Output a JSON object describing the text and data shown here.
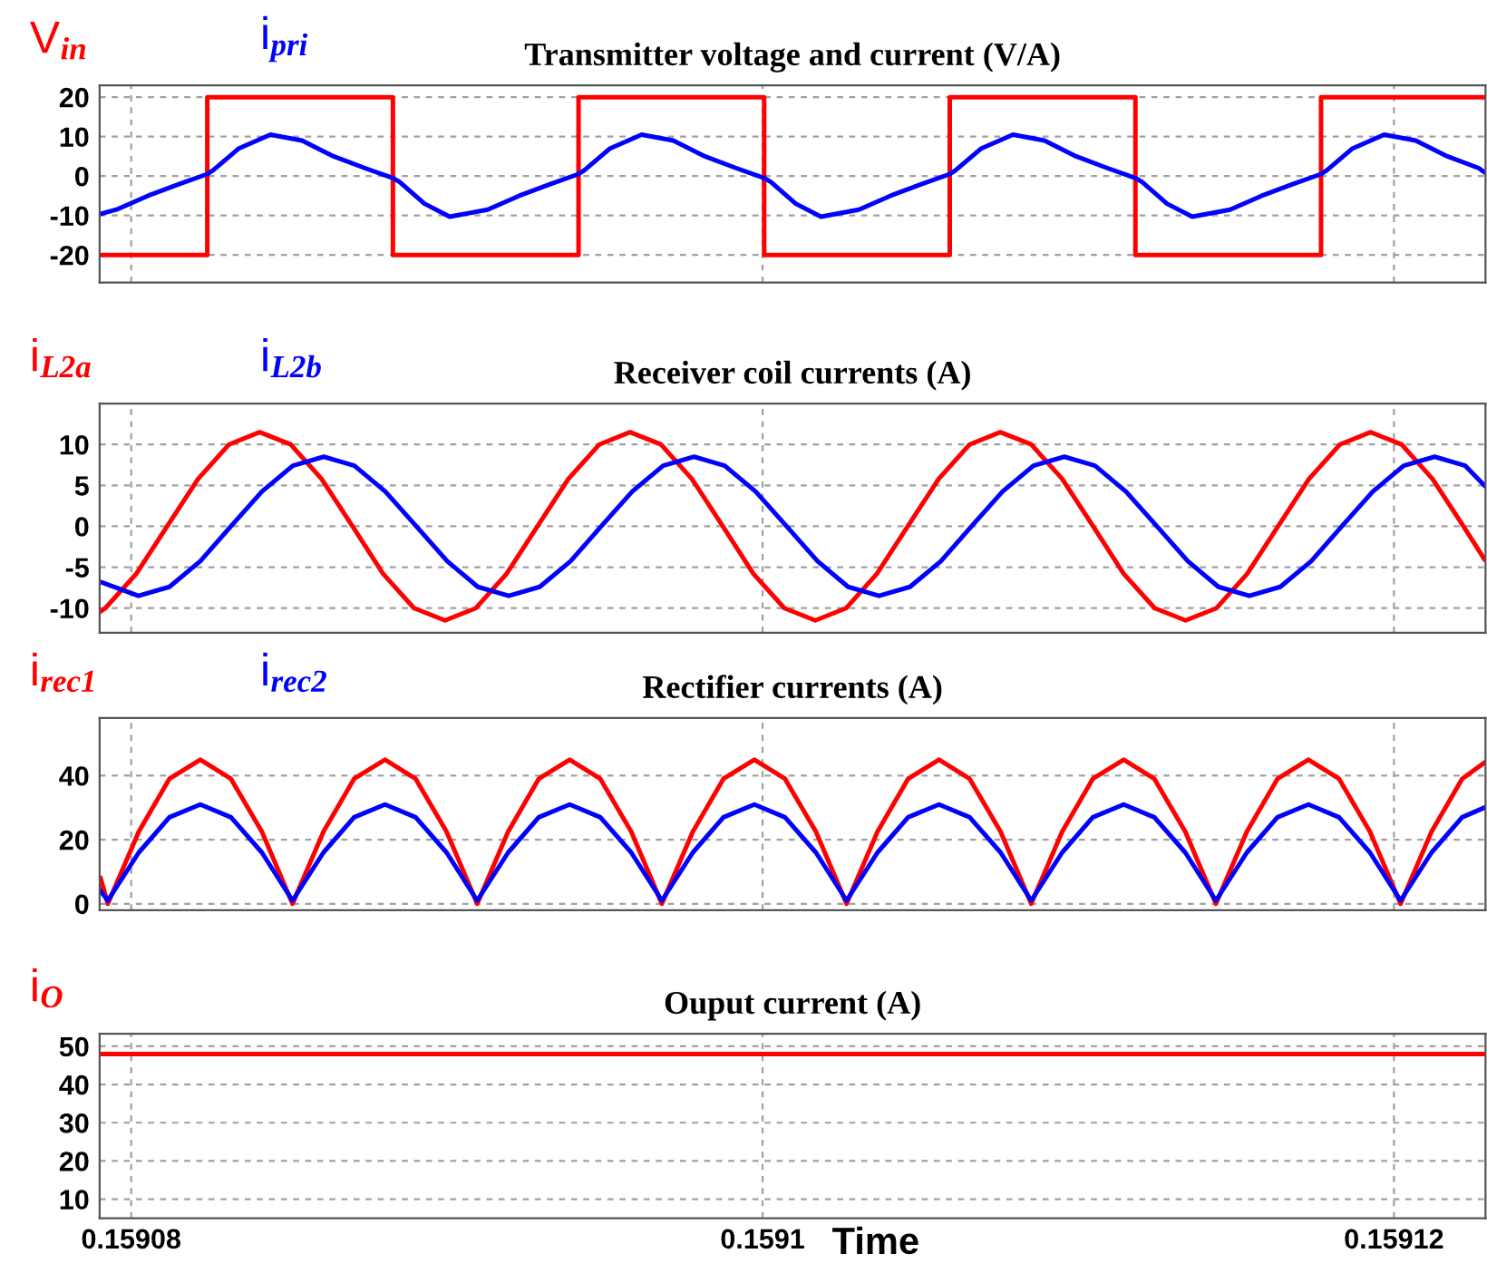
{
  "chart_data": [
    {
      "type": "line",
      "title": "Transmitter voltage and current (V/A)",
      "legend": "top left",
      "grid": true,
      "tick_labels": "y",
      "xlim": [
        0.159079,
        0.1591229
      ],
      "xticks": [
        0.15908,
        0.1591,
        0.15912
      ],
      "ylim": [
        -27,
        23
      ],
      "yticks": [
        -20,
        -10,
        0,
        10,
        20
      ],
      "series": [
        {
          "name": "V$_{in}$",
          "color": "#ff0000",
          "x": [
            0.15907903,
            0.15908241,
            0.15908241,
            0.15908829,
            0.15908829,
            0.15909417,
            0.15909417,
            0.15910005,
            0.15910005,
            0.15910593,
            0.15910593,
            0.15911181,
            0.15911181,
            0.15911769,
            0.15911769,
            0.15912286
          ],
          "values": [
            -20,
            -20,
            20,
            20,
            -20,
            -20,
            20,
            20,
            -20,
            -20,
            20,
            20,
            -20,
            -20,
            20,
            20
          ]
        },
        {
          "name": "i$_{pri}$",
          "color": "#0000ff",
          "x": [
            0.15907903,
            0.15907953,
            0.15908053,
            0.15908153,
            0.15908241,
            0.1590826,
            0.15908341,
            0.15908441,
            0.15908541,
            0.15908641,
            0.15908741,
            0.15908829,
            0.1590885,
            0.15908929,
            0.15909009,
            0.15909129,
            0.15909229,
            0.15909329,
            0.15909417,
            0.15909436,
            0.15909517,
            0.15909617,
            0.15909717,
            0.15909817,
            0.15909917,
            0.15910005,
            0.15910026,
            0.15910105,
            0.15910185,
            0.15910305,
            0.15910405,
            0.15910505,
            0.15910593,
            0.15910612,
            0.15910693,
            0.15910793,
            0.15910893,
            0.15910993,
            0.15911093,
            0.15911181,
            0.15911202,
            0.15911281,
            0.15911361,
            0.15911481,
            0.15911581,
            0.15911681,
            0.15911769,
            0.15911788,
            0.15911869,
            0.15911969,
            0.15912069,
            0.15912169,
            0.15912269,
            0.15912286
          ],
          "values": [
            -9.6,
            -8.5,
            -5,
            -2,
            0.5,
            1.5,
            7,
            10.5,
            9,
            5,
            2,
            -0.5,
            -1.5,
            -7,
            -10.3,
            -8.5,
            -5,
            -2,
            0.5,
            1.5,
            7,
            10.5,
            9,
            5,
            2,
            -0.5,
            -1.5,
            -7,
            -10.3,
            -8.5,
            -5,
            -2,
            0.5,
            1.5,
            7,
            10.5,
            9,
            5,
            2,
            -0.5,
            -1.5,
            -7,
            -10.3,
            -8.5,
            -5,
            -2,
            0.5,
            1.5,
            7,
            10.5,
            9,
            5,
            2,
            1
          ]
        }
      ]
    },
    {
      "type": "line",
      "title": "Receiver coil currents (A)",
      "legend": "top left",
      "grid": true,
      "tick_labels": "y",
      "xlim": [
        0.159079,
        0.1591229
      ],
      "xticks": [
        0.15908,
        0.1591,
        0.15912
      ],
      "ylim": [
        -13,
        15
      ],
      "yticks": [
        -10,
        -5,
        0,
        5,
        10
      ],
      "series": [
        {
          "name": "i$_{L2a}$",
          "color": "#ff0000",
          "x": [
            0.15907903,
            0.15907918,
            0.15908016,
            0.15908114,
            0.15908212,
            0.1590831,
            0.15908407,
            0.15908505,
            0.15908603,
            0.15908701,
            0.15908798,
            0.15908896,
            0.15908994,
            0.15909092,
            0.15909189,
            0.15909287,
            0.15909385,
            0.15909483,
            0.1590958,
            0.15909678,
            0.15909776,
            0.15909874,
            0.15909971,
            0.15910069,
            0.15910167,
            0.15910265,
            0.15910362,
            0.1591046,
            0.15910558,
            0.15910656,
            0.15910753,
            0.15910851,
            0.15910949,
            0.15911047,
            0.15911144,
            0.15911242,
            0.1591134,
            0.15911438,
            0.15911535,
            0.15911633,
            0.15911731,
            0.15911829,
            0.15911926,
            0.15912024,
            0.15912122,
            0.1591222,
            0.15912286
          ],
          "values": [
            -10.4,
            -10,
            -5.8,
            0,
            5.8,
            10,
            11.5,
            10,
            5.8,
            0,
            -5.8,
            -10,
            -11.5,
            -10,
            -5.8,
            0,
            5.8,
            10,
            11.5,
            10,
            5.8,
            0,
            -5.8,
            -10,
            -11.5,
            -10,
            -5.8,
            0,
            5.8,
            10,
            11.5,
            10,
            5.8,
            0,
            -5.8,
            -10,
            -11.5,
            -10,
            -5.8,
            0,
            5.8,
            10,
            11.5,
            10,
            5.8,
            0,
            -4
          ]
        },
        {
          "name": "i$_{L2b}$",
          "color": "#0000ff",
          "x": [
            0.15907903,
            0.15908023,
            0.15908121,
            0.15908219,
            0.15908316,
            0.15908414,
            0.15908512,
            0.1590861,
            0.15908707,
            0.15908805,
            0.15908903,
            0.15909001,
            0.15909098,
            0.15909196,
            0.15909294,
            0.15909392,
            0.15909489,
            0.15909587,
            0.15909685,
            0.15909783,
            0.1590988,
            0.15909978,
            0.15910076,
            0.15910174,
            0.15910271,
            0.15910369,
            0.15910467,
            0.15910565,
            0.15910662,
            0.1591076,
            0.15910858,
            0.15910956,
            0.15911053,
            0.15911151,
            0.15911249,
            0.15911347,
            0.15911444,
            0.15911542,
            0.1591164,
            0.15911738,
            0.15911835,
            0.15911933,
            0.15912031,
            0.15912129,
            0.15912226,
            0.15912286
          ],
          "values": [
            -6.8,
            -8.5,
            -7.4,
            -4.25,
            0,
            4.25,
            7.4,
            8.5,
            7.4,
            4.25,
            0,
            -4.25,
            -7.4,
            -8.5,
            -7.4,
            -4.25,
            0,
            4.25,
            7.4,
            8.5,
            7.4,
            4.25,
            0,
            -4.25,
            -7.4,
            -8.5,
            -7.4,
            -4.25,
            0,
            4.25,
            7.4,
            8.5,
            7.4,
            4.25,
            0,
            -4.25,
            -7.4,
            -8.5,
            -7.4,
            -4.25,
            0,
            4.25,
            7.4,
            8.5,
            7.4,
            5
          ]
        }
      ]
    },
    {
      "type": "line",
      "title": "Rectifier currents (A)",
      "legend": "top left",
      "grid": true,
      "tick_labels": "y",
      "xlim": [
        0.159079,
        0.1591229
      ],
      "xticks": [
        0.15908,
        0.1591,
        0.15912
      ],
      "ylim": [
        -2,
        58
      ],
      "yticks": [
        0,
        20,
        40
      ],
      "x": [
        0.15907903,
        0.15907926,
        0.15908024,
        0.15908121,
        0.15908219,
        0.15908316,
        0.15908414,
        0.15908511,
        0.15908609,
        0.15908706,
        0.15908804,
        0.15908901,
        0.15908999,
        0.15909096,
        0.15909194,
        0.15909291,
        0.15909389,
        0.15909486,
        0.15909584,
        0.15909681,
        0.15909779,
        0.15909876,
        0.15909974,
        0.15910071,
        0.15910169,
        0.15910266,
        0.15910364,
        0.15910461,
        0.15910559,
        0.15910656,
        0.15910754,
        0.15910851,
        0.15910949,
        0.15911046,
        0.15911144,
        0.15911241,
        0.15911339,
        0.15911436,
        0.15911534,
        0.15911631,
        0.15911729,
        0.15911826,
        0.15911924,
        0.15912021,
        0.15912119,
        0.15912216,
        0.15912286
      ],
      "series": [
        {
          "name": "i$_{rec1}$",
          "color": "#ff0000",
          "values": [
            8,
            0,
            22.5,
            39,
            45,
            39,
            22.5,
            0,
            22.5,
            39,
            45,
            39,
            22.5,
            0,
            22.5,
            39,
            45,
            39,
            22.5,
            0,
            22.5,
            39,
            45,
            39,
            22.5,
            0,
            22.5,
            39,
            45,
            39,
            22.5,
            0,
            22.5,
            39,
            45,
            39,
            22.5,
            0,
            22.5,
            39,
            45,
            39,
            22.5,
            0,
            22.5,
            39,
            44
          ]
        },
        {
          "name": "i$_{rec2}$",
          "color": "#0000ff",
          "values": [
            4,
            1,
            16,
            27,
            31,
            27,
            16,
            1,
            16,
            27,
            31,
            27,
            16,
            1,
            16,
            27,
            31,
            27,
            16,
            1,
            16,
            27,
            31,
            27,
            16,
            1,
            16,
            27,
            31,
            27,
            16,
            1,
            16,
            27,
            31,
            27,
            16,
            1,
            16,
            27,
            31,
            27,
            16,
            1,
            16,
            27,
            30
          ]
        }
      ]
    },
    {
      "type": "line",
      "title": "Ouput current (A)",
      "xlabel": "Time",
      "legend": "top left",
      "grid": true,
      "xlim": [
        0.159079,
        0.1591229
      ],
      "xticks": [
        0.15908,
        0.1591,
        0.15912
      ],
      "ylim": [
        5,
        53.3
      ],
      "yticks": [
        10,
        20,
        30,
        40,
        50
      ],
      "series": [
        {
          "name": "i$_{O}$",
          "color": "#ff0000",
          "x": [
            0.15907903,
            0.15912286
          ],
          "values": [
            48,
            48
          ]
        }
      ]
    }
  ]
}
